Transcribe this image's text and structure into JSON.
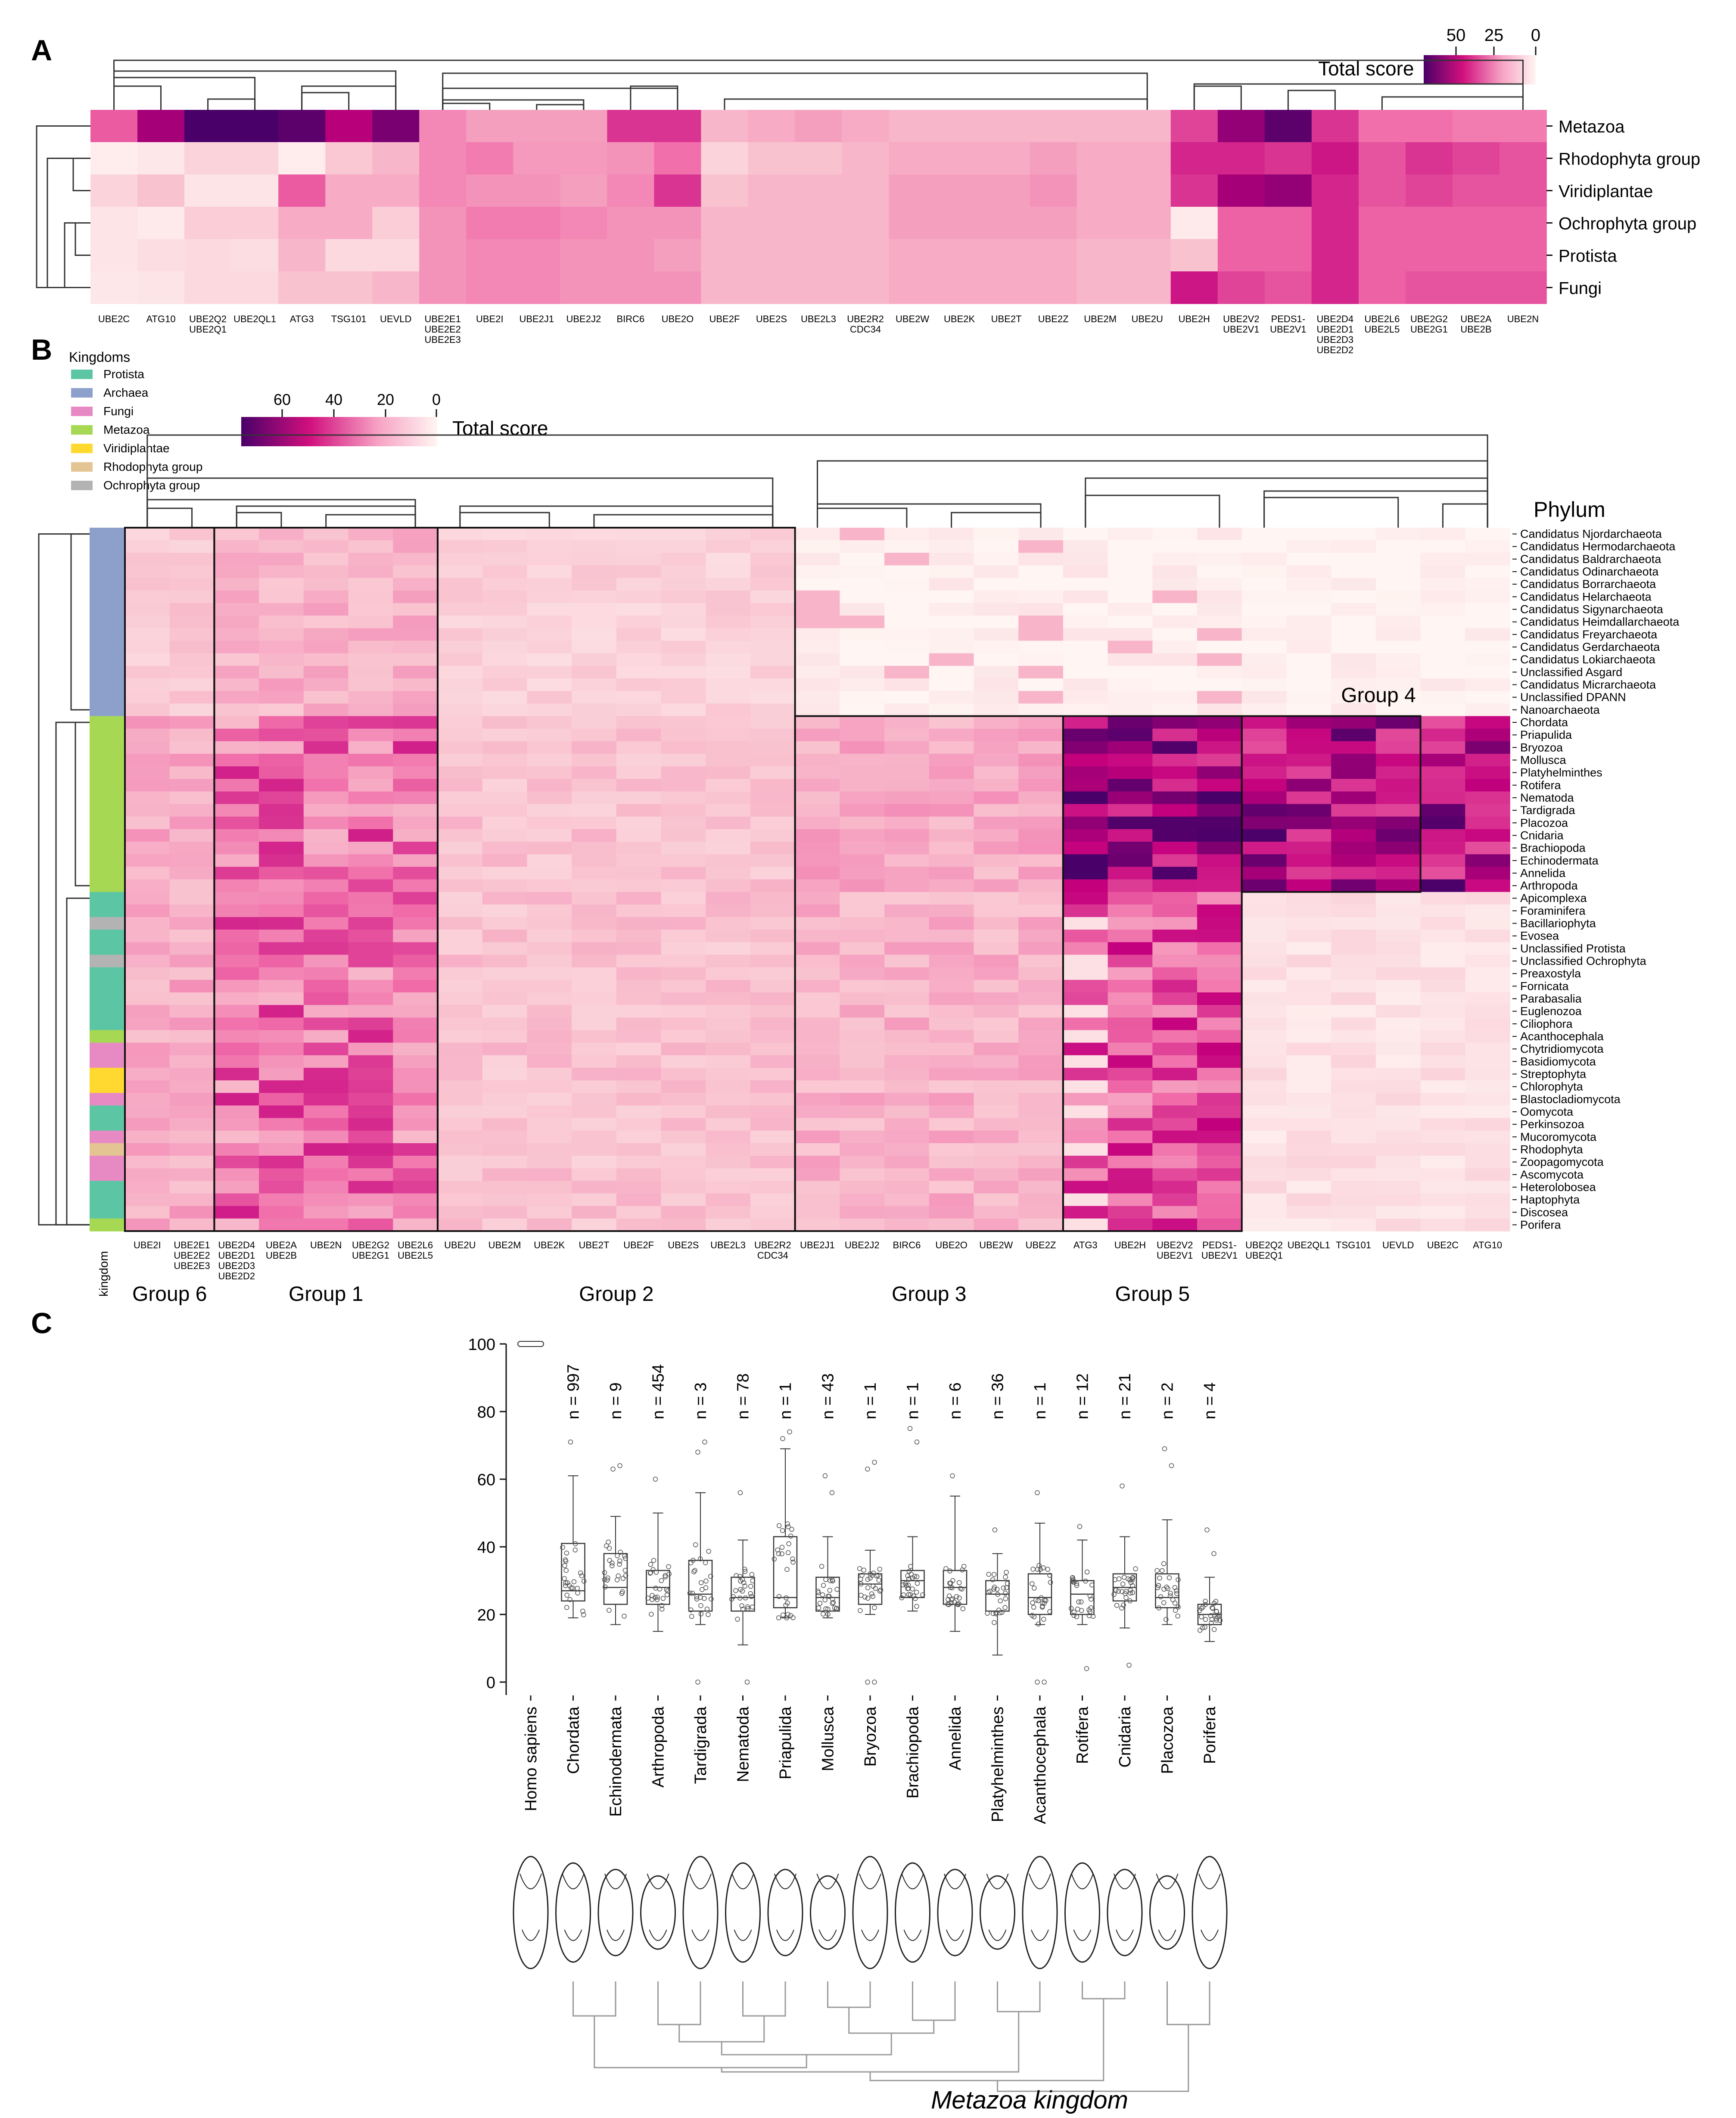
{
  "panels": {
    "a": "A",
    "b": "B",
    "c": "C"
  },
  "colors": {
    "low": "#fdf0ee",
    "mid": "#f48fb7",
    "high": "#e3007f",
    "max": "#4a0069",
    "kingdom": {
      "Protista": "#5cc6a4",
      "Archaea": "#8da0cb",
      "Fungi": "#e78ac3",
      "Metazoa": "#a6d854",
      "Viridiplantae": "#ffd92f",
      "Rhodophyta group": "#e5c494",
      "Ochrophyta group": "#b3b3b3"
    }
  },
  "panelA": {
    "legend_title": "Total score",
    "ticks": [
      "50",
      "25",
      "0"
    ],
    "rows": [
      "Metazoa",
      "Rhodophyta group",
      "Viridiplantae",
      "Ochrophyta group",
      "Protista",
      "Fungi"
    ],
    "columns": [
      "UBE2C",
      "ATG10",
      "UBE2Q2\nUBE2Q1",
      "UBE2QL1",
      "ATG3",
      "TSG101",
      "UEVLD",
      "UBE2E1\nUBE2E2\nUBE2E3",
      "UBE2I",
      "UBE2J1",
      "UBE2J2",
      "BIRC6",
      "UBE2O",
      "UBE2F",
      "UBE2S",
      "UBE2L3",
      "UBE2R2\nCDC34",
      "UBE2W",
      "UBE2K",
      "UBE2T",
      "UBE2Z",
      "UBE2M",
      "UBE2U",
      "UBE2H",
      "UBE2V2\nUBE2V1",
      "PEDS1-\nUBE2V1",
      "UBE2D4\nUBE2D1\nUBE2D3\nUBE2D2",
      "UBE2L6\nUBE2L5",
      "UBE2G2\nUBE2G1",
      "UBE2A\nUBE2B",
      "UBE2N"
    ]
  },
  "panelB": {
    "legend_title": "Total score",
    "ticks": [
      "60",
      "40",
      "20",
      "0"
    ],
    "kingdoms_title": "Kingdoms",
    "kingdoms": [
      "Protista",
      "Archaea",
      "Fungi",
      "Metazoa",
      "Viridiplantae",
      "Rhodophyta group",
      "Ochrophyta group"
    ],
    "phylum_title": "Phylum",
    "kingdom_axis_label": "kingdom",
    "phyla": [
      "Candidatus Njordarchaeota",
      "Candidatus Hermodarchaeota",
      "Candidatus Baldrarchaeota",
      "Candidatus Odinarchaeota",
      "Candidatus Borrarchaeota",
      "Candidatus Helarchaeota",
      "Candidatus Sigynarchaeota",
      "Candidatus Heimdallarchaeota",
      "Candidatus Freyarchaeota",
      "Candidatus Gerdarchaeota",
      "Candidatus Lokiarchaeota",
      "Unclassified Asgard",
      "Candidatus Micrarchaeota",
      "Unclassified DPANN",
      "Nanoarchaeota",
      "Chordata",
      "Priapulida",
      "Bryozoa",
      "Mollusca",
      "Platyhelminthes",
      "Rotifera",
      "Nematoda",
      "Tardigrada",
      "Placozoa",
      "Cnidaria",
      "Brachiopoda",
      "Echinodermata",
      "Annelida",
      "Arthropoda",
      "Apicomplexa",
      "Foraminifera",
      "Bacillariophyta",
      "Evosea",
      "Unclassified Protista",
      "Unclassified Ochrophyta",
      "Preaxostyla",
      "Fornicata",
      "Parabasalia",
      "Euglenozoa",
      "Ciliophora",
      "Acanthocephala",
      "Chytridiomycota",
      "Basidiomycota",
      "Streptophyta",
      "Chlorophyta",
      "Blastocladiomycota",
      "Oomycota",
      "Perkinsozoa",
      "Mucoromycota",
      "Rhodophyta",
      "Zoopagomycota",
      "Ascomycota",
      "Heterolobosea",
      "Haptophyta",
      "Discosea",
      "Porifera"
    ],
    "phylum_kingdom": [
      "Archaea",
      "Archaea",
      "Archaea",
      "Archaea",
      "Archaea",
      "Archaea",
      "Archaea",
      "Archaea",
      "Archaea",
      "Archaea",
      "Archaea",
      "Archaea",
      "Archaea",
      "Archaea",
      "Archaea",
      "Metazoa",
      "Metazoa",
      "Metazoa",
      "Metazoa",
      "Metazoa",
      "Metazoa",
      "Metazoa",
      "Metazoa",
      "Metazoa",
      "Metazoa",
      "Metazoa",
      "Metazoa",
      "Metazoa",
      "Metazoa",
      "Protista",
      "Protista",
      "Ochrophyta group",
      "Protista",
      "Protista",
      "Ochrophyta group",
      "Protista",
      "Protista",
      "Protista",
      "Protista",
      "Protista",
      "Metazoa",
      "Fungi",
      "Fungi",
      "Viridiplantae",
      "Viridiplantae",
      "Fungi",
      "Protista",
      "Protista",
      "Fungi",
      "Rhodophyta group",
      "Fungi",
      "Fungi",
      "Protista",
      "Protista",
      "Protista",
      "Metazoa"
    ],
    "columns": [
      "UBE2I",
      "UBE2E1\nUBE2E2\nUBE2E3",
      "UBE2D4\nUBE2D1\nUBE2D3\nUBE2D2",
      "UBE2A\nUBE2B",
      "UBE2N",
      "UBE2G2\nUBE2G1",
      "UBE2L6\nUBE2L5",
      "UBE2U",
      "UBE2M",
      "UBE2K",
      "UBE2T",
      "UBE2F",
      "UBE2S",
      "UBE2L3",
      "UBE2R2\nCDC34",
      "UBE2J1",
      "UBE2J2",
      "BIRC6",
      "UBE2O",
      "UBE2W",
      "UBE2Z",
      "ATG3",
      "UBE2H",
      "UBE2V2\nUBE2V1",
      "PEDS1-\nUBE2V1",
      "UBE2Q2\nUBE2Q1",
      "UBE2QL1",
      "TSG101",
      "UEVLD",
      "UBE2C",
      "ATG10"
    ],
    "groups": [
      "Group 6",
      "Group 1",
      "Group 2",
      "Group 3",
      "Group 5",
      "Group 4"
    ]
  },
  "panelC": {
    "yticks": [
      "100",
      "80",
      "60",
      "40",
      "20",
      "0"
    ],
    "title": "Metazoa kingdom",
    "taxa": [
      "Homo sapiens",
      "Chordata",
      "Echinodermata",
      "Arthropoda",
      "Tardigrada",
      "Nematoda",
      "Priapulida",
      "Mollusca",
      "Bryozoa",
      "Brachiopoda",
      "Annelida",
      "Platyhelminthes",
      "Acanthocephala",
      "Rotifera",
      "Cnidaria",
      "Placozoa",
      "Porifera"
    ],
    "n_labels": [
      "",
      "n = 997",
      "n = 9",
      "n = 454",
      "n = 3",
      "n = 78",
      "n = 1",
      "n = 43",
      "n = 1",
      "n = 1",
      "n = 6",
      "n = 36",
      "n = 1",
      "n = 12",
      "n = 21",
      "n = 2",
      "n = 4"
    ]
  },
  "chart_data": [
    {
      "type": "heatmap",
      "title": "A",
      "value_range": [
        0,
        60
      ],
      "colorbar_label": "Total score",
      "rows": [
        "Metazoa",
        "Rhodophyta group",
        "Viridiplantae",
        "Ochrophyta group",
        "Protista",
        "Fungi"
      ],
      "values": [
        [
          35,
          50,
          65,
          60,
          58,
          48,
          55,
          28,
          24,
          24,
          24,
          40,
          40,
          20,
          22,
          24,
          22,
          20,
          20,
          20,
          20,
          20,
          20,
          38,
          52,
          58,
          40,
          32,
          32,
          30,
          30
        ],
        [
          3,
          5,
          12,
          12,
          3,
          16,
          20,
          28,
          30,
          25,
          25,
          26,
          32,
          12,
          18,
          18,
          20,
          22,
          22,
          22,
          24,
          22,
          22,
          42,
          42,
          40,
          44,
          36,
          40,
          38,
          36
        ],
        [
          12,
          18,
          6,
          6,
          35,
          22,
          22,
          28,
          26,
          26,
          24,
          28,
          40,
          18,
          20,
          20,
          20,
          24,
          24,
          24,
          26,
          22,
          22,
          40,
          50,
          52,
          42,
          36,
          38,
          36,
          36
        ],
        [
          6,
          4,
          14,
          14,
          22,
          22,
          14,
          26,
          30,
          30,
          28,
          26,
          26,
          20,
          20,
          20,
          20,
          24,
          24,
          24,
          24,
          22,
          22,
          4,
          34,
          34,
          42,
          34,
          34,
          34,
          34
        ],
        [
          6,
          8,
          10,
          8,
          20,
          10,
          10,
          26,
          28,
          28,
          26,
          26,
          24,
          20,
          20,
          20,
          20,
          22,
          22,
          22,
          22,
          20,
          20,
          18,
          34,
          34,
          42,
          34,
          34,
          34,
          34
        ],
        [
          5,
          6,
          10,
          10,
          18,
          18,
          20,
          26,
          28,
          28,
          26,
          26,
          26,
          20,
          20,
          20,
          20,
          22,
          22,
          22,
          22,
          20,
          20,
          44,
          38,
          36,
          42,
          34,
          36,
          36,
          36
        ]
      ]
    },
    {
      "type": "heatmap",
      "title": "B",
      "value_range": [
        0,
        60
      ],
      "colorbar_label": "Total score",
      "archaea_block": {
        "Group 6": 16,
        "Group 1": 22,
        "Group 2": 14,
        "Group 3": 2,
        "Group 5": 2,
        "Group 4": 1
      },
      "metazoa_block": {
        "Group 6": 24,
        "Group 1": 34,
        "Group 2": 18,
        "Group 3": 24,
        "Group 5": 55,
        "Group 4": 52
      },
      "other_eukaryote_block": {
        "Group 6": 24,
        "Group 1": 34,
        "Group 2": 18,
        "Group 3": 22,
        "Group 5": 38,
        "Group 4": 8
      }
    },
    {
      "type": "box",
      "title": "Metazoa kingdom",
      "ylim": [
        0,
        100
      ],
      "categories": [
        "Homo sapiens",
        "Chordata",
        "Echinodermata",
        "Arthropoda",
        "Tardigrada",
        "Nematoda",
        "Priapulida",
        "Mollusca",
        "Bryozoa",
        "Brachiopoda",
        "Annelida",
        "Platyhelminthes",
        "Acanthocephala",
        "Rotifera",
        "Cnidaria",
        "Placozoa",
        "Porifera"
      ],
      "n": [
        null,
        997,
        9,
        454,
        3,
        78,
        1,
        43,
        1,
        1,
        6,
        36,
        1,
        12,
        21,
        2,
        4
      ],
      "box": [
        [
          100,
          100,
          100,
          100,
          100
        ],
        [
          19,
          24,
          27,
          41,
          61
        ],
        [
          17,
          23,
          28,
          38,
          49
        ],
        [
          15,
          23,
          28,
          33,
          50
        ],
        [
          17,
          21,
          26,
          36,
          56
        ],
        [
          11,
          21,
          25,
          31,
          42
        ],
        [
          19,
          22,
          25,
          43,
          69
        ],
        [
          19,
          21,
          25,
          31,
          43
        ],
        [
          20,
          23,
          29,
          32,
          39
        ],
        [
          21,
          25,
          30,
          33,
          43
        ],
        [
          15,
          23,
          28,
          33,
          55
        ],
        [
          8,
          21,
          26,
          30,
          38
        ],
        [
          17,
          20,
          25,
          32,
          47
        ],
        [
          17,
          20,
          26,
          30,
          42
        ],
        [
          16,
          24,
          28,
          32,
          43
        ],
        [
          17,
          22,
          25,
          32,
          48
        ],
        [
          12,
          17,
          20,
          23,
          31
        ]
      ],
      "outliers": [
        [],
        [
          71
        ],
        [
          63,
          64
        ],
        [
          60
        ],
        [
          68,
          71,
          0
        ],
        [
          56,
          0
        ],
        [
          72,
          74
        ],
        [
          61,
          56
        ],
        [
          63,
          65,
          0,
          0
        ],
        [
          75,
          71
        ],
        [
          61
        ],
        [
          45
        ],
        [
          56,
          0,
          0
        ],
        [
          46,
          4
        ],
        [
          58,
          5
        ],
        [
          69,
          64
        ],
        [
          45,
          38
        ]
      ]
    }
  ]
}
